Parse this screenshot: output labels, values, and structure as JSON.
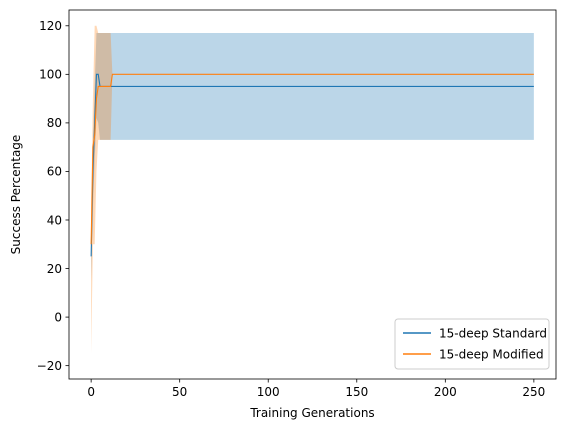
{
  "chart_data": {
    "type": "line",
    "title": "",
    "xlabel": "Training Generations",
    "ylabel": "Success Percentage",
    "xlim": [
      -12.5,
      262.5
    ],
    "ylim": [
      -25.5,
      126.5
    ],
    "xticks": [
      0,
      50,
      100,
      150,
      200,
      250
    ],
    "yticks": [
      -20,
      0,
      20,
      40,
      60,
      80,
      100,
      120
    ],
    "grid": false,
    "legend_position": "lower right",
    "series": [
      {
        "name": "15-deep Standard",
        "color": "#1f77b4",
        "x": [
          0,
          1,
          2,
          3,
          4,
          5,
          6,
          7,
          8,
          9,
          10,
          11,
          12,
          13,
          250
        ],
        "y": [
          25,
          60,
          80,
          100,
          100,
          95,
          95,
          95,
          95,
          95,
          95,
          95,
          95,
          95,
          95
        ],
        "band_upper": [
          35,
          70,
          95,
          117,
          117,
          117,
          117,
          117,
          117,
          117,
          117,
          117,
          117,
          117,
          117
        ],
        "band_lower": [
          15,
          45,
          65,
          82,
          80,
          73,
          73,
          73,
          73,
          73,
          73,
          73,
          73,
          73,
          73
        ]
      },
      {
        "name": "15-deep Modified",
        "color": "#ff7f0e",
        "x": [
          0,
          1,
          2,
          3,
          4,
          5,
          6,
          7,
          8,
          9,
          10,
          11,
          12,
          13,
          250
        ],
        "y": [
          30,
          70,
          75,
          90,
          95,
          95,
          95,
          95,
          95,
          95,
          95,
          95,
          100,
          100,
          100
        ],
        "band_upper": [
          45,
          90,
          120,
          120,
          117,
          117,
          117,
          117,
          117,
          117,
          117,
          117,
          100,
          100,
          100
        ],
        "band_lower": [
          -15,
          30,
          30,
          60,
          73,
          73,
          73,
          73,
          73,
          73,
          73,
          73,
          100,
          100,
          100
        ]
      }
    ]
  }
}
